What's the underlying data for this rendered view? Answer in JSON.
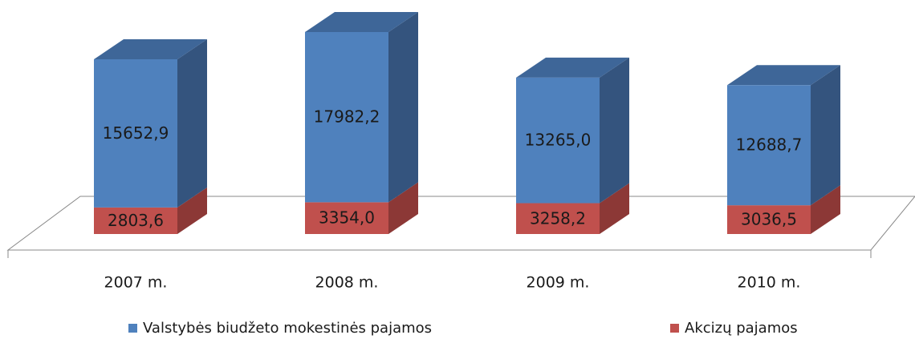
{
  "chart_data": {
    "type": "bar3d_stacked",
    "categories": [
      "2007 m.",
      "2008 m.",
      "2009 m.",
      "2010 m."
    ],
    "series": [
      {
        "name": "Akcizų pajamos",
        "color": "#c0504d",
        "side": "#8c3836",
        "top": "#a2403d",
        "values": [
          2803.6,
          3354.0,
          3258.2,
          3036.5
        ],
        "value_labels": [
          "2803,6",
          "3354,0",
          "3258,2",
          "3036,5"
        ]
      },
      {
        "name": "Valstybės biudžeto mokestinės pajamos",
        "color": "#4f81bd",
        "side": "#34547e",
        "top": "#3e6698",
        "values": [
          15652.9,
          17982.2,
          13265.0,
          12688.7
        ],
        "value_labels": [
          "15652,9",
          "17982,2",
          "13265,0",
          "12688,7"
        ]
      }
    ]
  }
}
